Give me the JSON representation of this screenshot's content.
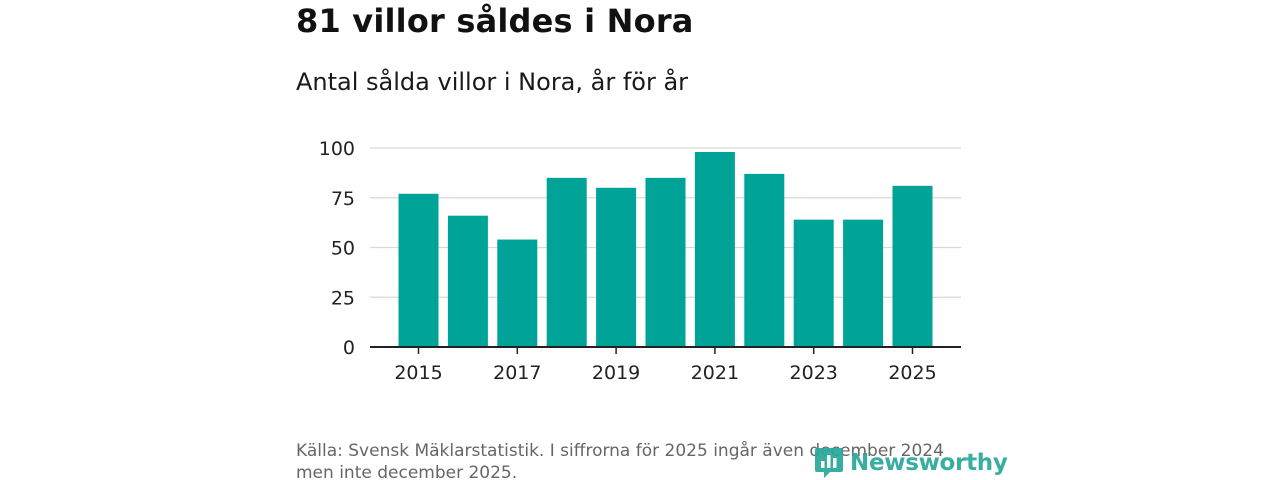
{
  "header": {
    "title": "81 villor såldes i Nora",
    "subtitle": "Antal sålda villor i Nora, år för år"
  },
  "colors": {
    "bar": "#00a398",
    "grid": "#d9d9d9",
    "axis": "#222222",
    "brand": "#2aa79b",
    "source_text": "#666666"
  },
  "chart_data": {
    "type": "bar",
    "title": "Antal sålda villor i Nora, år för år",
    "xlabel": "",
    "ylabel": "",
    "ylim": [
      0,
      100
    ],
    "yticks": [
      0,
      25,
      50,
      75,
      100
    ],
    "xtick_labels": [
      "2015",
      "2017",
      "2019",
      "2021",
      "2023",
      "2025"
    ],
    "grid": true,
    "categories": [
      "2015",
      "2016",
      "2017",
      "2018",
      "2019",
      "2020",
      "2021",
      "2022",
      "2023",
      "2024",
      "2025"
    ],
    "values": [
      77,
      66,
      54,
      85,
      80,
      85,
      98,
      87,
      64,
      64,
      81
    ]
  },
  "footer": {
    "source": "Källa: Svensk Mäklarstatistik. I siffrorna för 2025 ingår även december 2024 men inte december 2025.",
    "brand_name": "Newsworthy",
    "brand_icon": "newsworthy-logo-icon"
  }
}
